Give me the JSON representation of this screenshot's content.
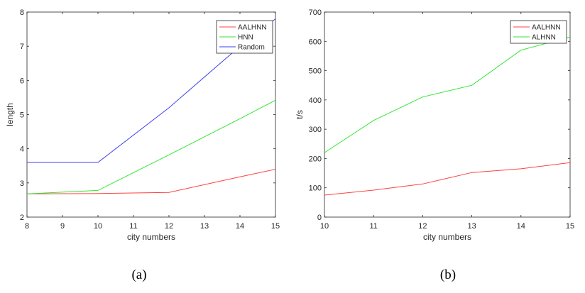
{
  "chart_data": [
    {
      "type": "line",
      "caption": "(a)",
      "xlabel": "city numbers",
      "ylabel": "length",
      "xlim": [
        8,
        15
      ],
      "ylim": [
        2,
        8
      ],
      "xticks": [
        "8",
        "9",
        "10",
        "11",
        "12",
        "13",
        "14",
        "15"
      ],
      "yticks": [
        "2",
        "3",
        "4",
        "5",
        "6",
        "7",
        "8"
      ],
      "grid": false,
      "legend_position": "top-right",
      "series": [
        {
          "name": "AALHNN",
          "color": "#ff4040",
          "x": [
            8,
            10,
            12,
            13,
            14,
            15
          ],
          "y": [
            2.68,
            2.69,
            2.72,
            2.95,
            3.18,
            3.4
          ]
        },
        {
          "name": "HNN",
          "color": "#33e633",
          "x": [
            8,
            10,
            12,
            13,
            14,
            15
          ],
          "y": [
            2.68,
            2.78,
            3.82,
            4.35,
            4.88,
            5.42
          ]
        },
        {
          "name": "Random",
          "color": "#3d3df0",
          "x": [
            8,
            10,
            12,
            13,
            14,
            15
          ],
          "y": [
            3.6,
            3.6,
            5.2,
            6.1,
            7.0,
            7.8
          ]
        }
      ]
    },
    {
      "type": "line",
      "caption": "(b)",
      "xlabel": "city numbers",
      "ylabel": "t/s",
      "xlim": [
        10,
        15
      ],
      "ylim": [
        0,
        700
      ],
      "xticks": [
        "10",
        "11",
        "12",
        "13",
        "14",
        "15"
      ],
      "yticks": [
        "0",
        "100",
        "200",
        "300",
        "400",
        "500",
        "600",
        "700"
      ],
      "grid": false,
      "legend_position": "top-right",
      "series": [
        {
          "name": "AALHNN",
          "color": "#ff4040",
          "x": [
            10,
            11,
            12,
            13,
            14,
            15
          ],
          "y": [
            75,
            92,
            113,
            152,
            165,
            186
          ]
        },
        {
          "name": "ALHNN",
          "color": "#33e633",
          "x": [
            10,
            11,
            12,
            13,
            14,
            15
          ],
          "y": [
            220,
            330,
            410,
            450,
            570,
            615
          ]
        }
      ]
    }
  ]
}
